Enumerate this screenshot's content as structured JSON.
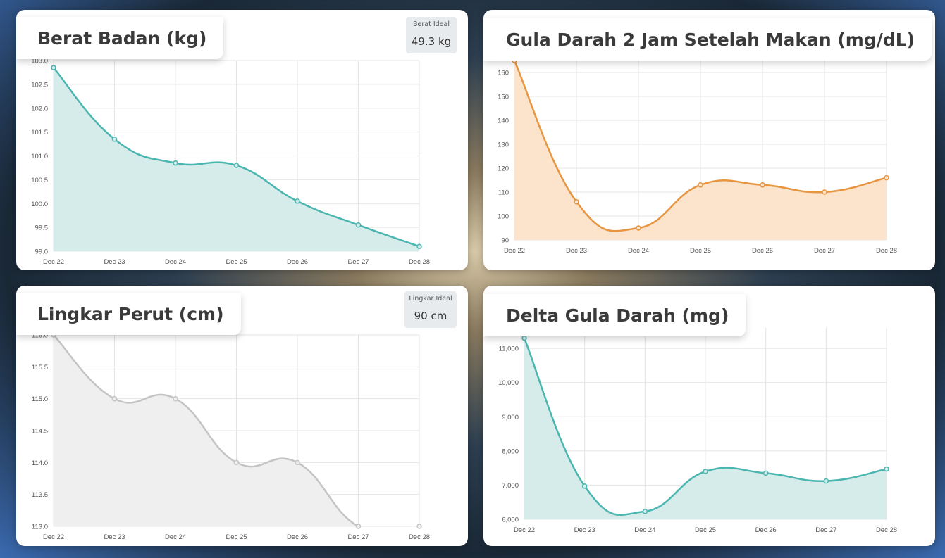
{
  "charts": [
    {
      "id": "berat",
      "title": "Berat Badan (kg)",
      "badge": {
        "label": "Berat Ideal",
        "value": "49.3 kg"
      },
      "color": "#4bb5b0",
      "fill": "#d5ecea"
    },
    {
      "id": "gula2jam",
      "title": "Gula Darah 2 Jam Setelah Makan (mg/dL)",
      "color": "#e8953f",
      "fill": "#fbe3cc"
    },
    {
      "id": "lingkar",
      "title": "Lingkar Perut (cm)",
      "badge": {
        "label": "Lingkar Ideal",
        "value": "90 cm"
      },
      "color": "#c4c4c4",
      "fill": "#efefef"
    },
    {
      "id": "delta",
      "title": "Delta Gula Darah (mg)",
      "color": "#4bb5b0",
      "fill": "#d5ecea"
    }
  ],
  "chart_data": [
    {
      "type": "area",
      "title": "Berat Badan (kg)",
      "categories": [
        "Dec 22",
        "Dec 23",
        "Dec 24",
        "Dec 25",
        "Dec 26",
        "Dec 27",
        "Dec 28"
      ],
      "values": [
        102.85,
        101.35,
        100.85,
        100.8,
        100.05,
        99.55,
        99.1
      ],
      "ylim": [
        99.0,
        103.0
      ],
      "yticks": [
        "103.0",
        "102.5",
        "102.0",
        "101.5",
        "101.0",
        "100.5",
        "100.0",
        "99.5",
        "99.0"
      ],
      "grid": true
    },
    {
      "type": "area",
      "title": "Gula Darah 2 Jam Setelah Makan (mg/dL)",
      "categories": [
        "Dec 22",
        "Dec 23",
        "Dec 24",
        "Dec 25",
        "Dec 26",
        "Dec 27",
        "Dec 28"
      ],
      "values": [
        165,
        106,
        95,
        113,
        113,
        110,
        116
      ],
      "ylim": [
        90,
        165
      ],
      "yticks": [
        "160",
        "150",
        "140",
        "130",
        "120",
        "110",
        "100",
        "90"
      ],
      "grid": true
    },
    {
      "type": "area",
      "title": "Lingkar Perut (cm)",
      "categories": [
        "Dec 22",
        "Dec 23",
        "Dec 24",
        "Dec 25",
        "Dec 26",
        "Dec 27",
        "Dec 28"
      ],
      "values": [
        116.0,
        115.0,
        115.0,
        114.0,
        114.0,
        113.0,
        113.0
      ],
      "ylim": [
        113.0,
        116.0
      ],
      "yticks": [
        "116.0",
        "115.5",
        "115.0",
        "114.5",
        "114.0",
        "113.5",
        "113.0"
      ],
      "grid": true
    },
    {
      "type": "area",
      "title": "Delta Gula Darah (mg)",
      "categories": [
        "Dec 22",
        "Dec 23",
        "Dec 24",
        "Dec 25",
        "Dec 26",
        "Dec 27",
        "Dec 28"
      ],
      "values": [
        11300,
        6970,
        6230,
        7400,
        7350,
        7120,
        7470
      ],
      "ylim": [
        6000,
        11600
      ],
      "yticks": [
        "11,000",
        "10,000",
        "9,000",
        "8,000",
        "7,000",
        "6,000"
      ],
      "grid": true
    }
  ]
}
